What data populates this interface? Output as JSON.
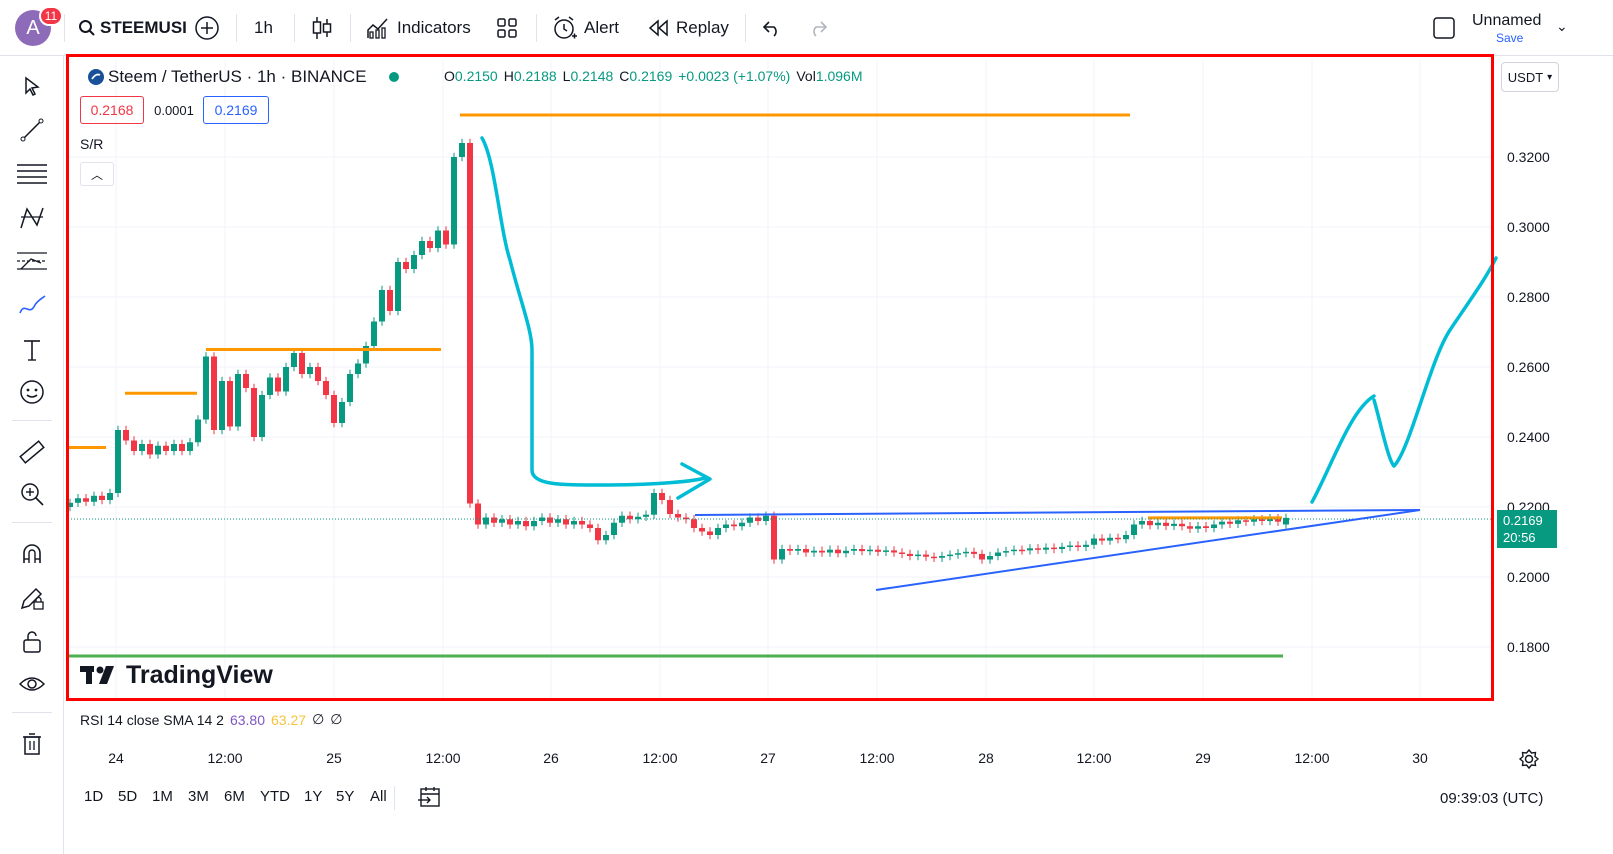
{
  "topbar": {
    "avatar_letter": "A",
    "notifications": "11",
    "symbol": "STEEMUSI",
    "interval": "1h",
    "indicators_label": "Indicators",
    "alert_label": "Alert",
    "replay_label": "Replay",
    "layout_name": "Unnamed",
    "save_label": "Save"
  },
  "legend": {
    "title": "Steem / TetherUS · 1h · BINANCE",
    "o_key": "O",
    "o_val": "0.2150",
    "h_key": "H",
    "h_val": "0.2188",
    "l_key": "L",
    "l_val": "0.2148",
    "c_key": "C",
    "c_val": "0.2169",
    "change": "+0.0023 (+1.07%)",
    "vol_key": "Vol",
    "vol_val": "1.096M"
  },
  "trade": {
    "bid": "0.2168",
    "spread": "0.0001",
    "ask": "0.2169"
  },
  "sr_label": "S/R",
  "currency": "USDT",
  "price_tag": {
    "price": "0.2169",
    "countdown": "20:56"
  },
  "price_axis": [
    "0.3200",
    "0.3000",
    "0.2800",
    "0.2600",
    "0.2400",
    "0.2200",
    "0.2000",
    "0.1800"
  ],
  "time_axis": [
    "24",
    "12:00",
    "25",
    "12:00",
    "26",
    "12:00",
    "27",
    "12:00",
    "28",
    "12:00",
    "29",
    "12:00",
    "30"
  ],
  "brand": "TradingView",
  "rsi": {
    "label": "RSI 14 close SMA 14 2",
    "v1": "63.80",
    "v2": "63.27",
    "v3": "∅",
    "v4": "∅"
  },
  "ranges": [
    "1D",
    "5D",
    "1M",
    "3M",
    "6M",
    "YTD",
    "1Y",
    "5Y",
    "All"
  ],
  "clock": "09:39:03 (UTC)",
  "colors": {
    "up": "#089981",
    "down": "#f23645",
    "sr": "#ff9800",
    "trend": "#2962ff",
    "drawing": "#00bcd4",
    "frame": "#ff0000"
  }
}
